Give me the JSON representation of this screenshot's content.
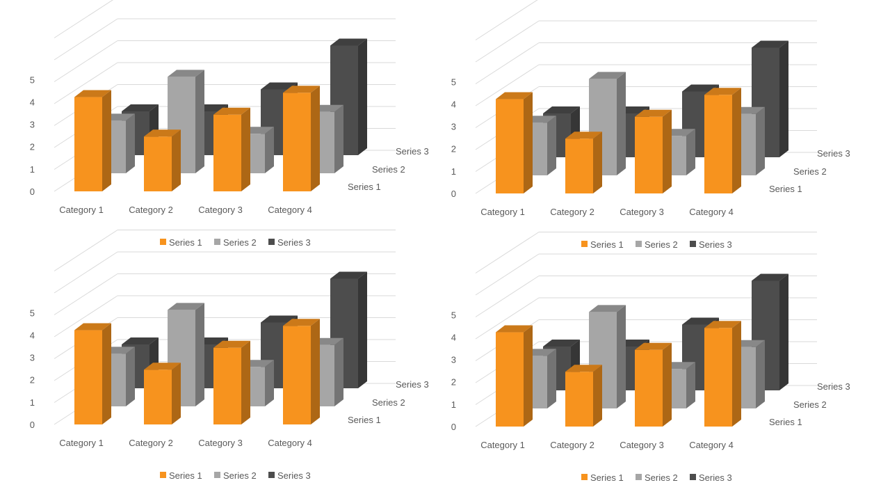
{
  "colors": {
    "Series 1": "#F7931E",
    "Series 2": "#A6A6A6",
    "Series 3": "#4D4D4D",
    "grid": "#D9D9D9",
    "text": "#595959"
  },
  "chart_data": [
    {
      "type": "bar",
      "variant": "3d-clustered-column",
      "categories": [
        "Category 1",
        "Category 2",
        "Category 3",
        "Category 4"
      ],
      "series": [
        {
          "name": "Series 1",
          "values": [
            4.3,
            2.5,
            3.5,
            4.5
          ]
        },
        {
          "name": "Series 2",
          "values": [
            2.4,
            4.4,
            1.8,
            2.8
          ]
        },
        {
          "name": "Series 3",
          "values": [
            2,
            2,
            3,
            5
          ]
        }
      ],
      "ylim": [
        0,
        5
      ],
      "yticks": [
        "0",
        "1",
        "2",
        "3",
        "4",
        "5"
      ],
      "legend": "bottom",
      "grid": true
    },
    {
      "type": "bar",
      "variant": "3d-clustered-column",
      "categories": [
        "Category 1",
        "Category 2",
        "Category 3",
        "Category 4"
      ],
      "series": [
        {
          "name": "Series 1",
          "values": [
            4.3,
            2.5,
            3.5,
            4.5
          ]
        },
        {
          "name": "Series 2",
          "values": [
            2.4,
            4.4,
            1.8,
            2.8
          ]
        },
        {
          "name": "Series 3",
          "values": [
            2,
            2,
            3,
            5
          ]
        }
      ],
      "ylim": [
        0,
        5
      ],
      "yticks": [
        "0",
        "1",
        "2",
        "3",
        "4",
        "5"
      ],
      "legend": "bottom",
      "grid": true
    },
    {
      "type": "bar",
      "variant": "3d-clustered-column",
      "categories": [
        "Category 1",
        "Category 2",
        "Category 3",
        "Category 4"
      ],
      "series": [
        {
          "name": "Series 1",
          "values": [
            4.3,
            2.5,
            3.5,
            4.5
          ]
        },
        {
          "name": "Series 2",
          "values": [
            2.4,
            4.4,
            1.8,
            2.8
          ]
        },
        {
          "name": "Series 3",
          "values": [
            2,
            2,
            3,
            5
          ]
        }
      ],
      "ylim": [
        0,
        5
      ],
      "yticks": [
        "0",
        "1",
        "2",
        "3",
        "4",
        "5"
      ],
      "legend": "bottom",
      "grid": true
    },
    {
      "type": "bar",
      "variant": "3d-clustered-column",
      "categories": [
        "Category 1",
        "Category 2",
        "Category 3",
        "Category 4"
      ],
      "series": [
        {
          "name": "Series 1",
          "values": [
            4.3,
            2.5,
            3.5,
            4.5
          ]
        },
        {
          "name": "Series 2",
          "values": [
            2.4,
            4.4,
            1.8,
            2.8
          ]
        },
        {
          "name": "Series 3",
          "values": [
            2,
            2,
            3,
            5
          ]
        }
      ],
      "ylim": [
        0,
        5
      ],
      "yticks": [
        "0",
        "1",
        "2",
        "3",
        "4",
        "5"
      ],
      "legend": "bottom",
      "grid": true
    }
  ]
}
